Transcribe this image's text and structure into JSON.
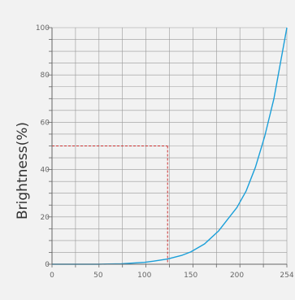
{
  "chart_data": {
    "type": "line",
    "title": "",
    "xlabel": "",
    "ylabel": "Brightness(%)",
    "xlim": [
      0,
      254
    ],
    "ylim": [
      0,
      100
    ],
    "grid": true,
    "x_ticks": [
      0,
      50,
      100,
      150,
      200,
      254
    ],
    "y_ticks": [
      0,
      20,
      40,
      60,
      80,
      100
    ],
    "series": [
      {
        "x": [
          0,
          25,
          50,
          75,
          100,
          110,
          125,
          140,
          150,
          165,
          180,
          190,
          200,
          210,
          220,
          230,
          240,
          254
        ],
        "y": [
          0,
          0,
          0,
          0.2,
          0.8,
          1.3,
          2.2,
          3.7,
          5.2,
          8.6,
          14,
          19,
          24,
          31,
          41,
          54,
          70,
          100
        ]
      }
    ],
    "reference_point": {
      "x": 125,
      "y": 50
    },
    "colors": {
      "series": "#1a9fd9",
      "reference": "#cc3333",
      "grid": "#999999",
      "axis": "#666666"
    }
  }
}
